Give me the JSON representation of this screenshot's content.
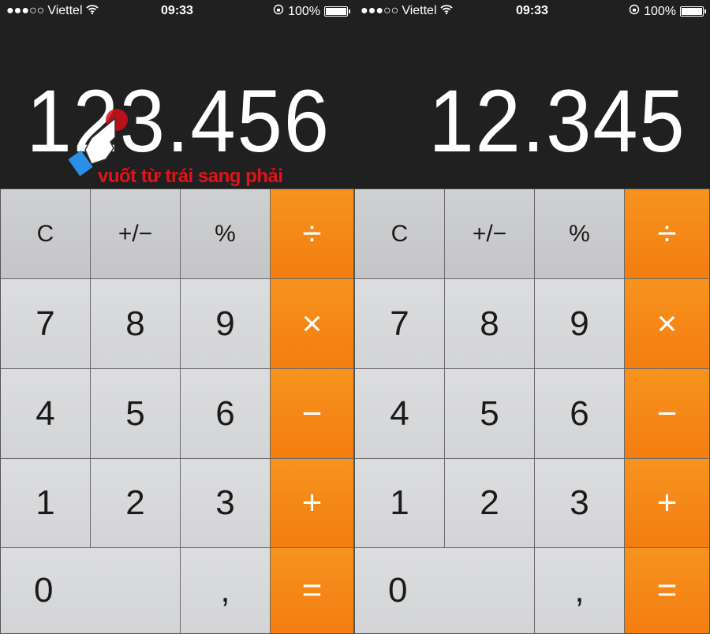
{
  "status_bar": {
    "signal": "●●●○○",
    "carrier": "Viettel",
    "time": "09:33",
    "battery": "100%"
  },
  "panels": [
    {
      "display": "123.456"
    },
    {
      "display": "12.345"
    }
  ],
  "keys": [
    {
      "label": "C",
      "type": "fn",
      "name": "clear"
    },
    {
      "label": "+/−",
      "type": "fn",
      "name": "sign"
    },
    {
      "label": "%",
      "type": "fn",
      "name": "percent"
    },
    {
      "label": "÷",
      "type": "op",
      "name": "divide"
    },
    {
      "label": "7",
      "type": "num",
      "name": "7"
    },
    {
      "label": "8",
      "type": "num",
      "name": "8"
    },
    {
      "label": "9",
      "type": "num",
      "name": "9"
    },
    {
      "label": "×",
      "type": "op",
      "name": "multiply"
    },
    {
      "label": "4",
      "type": "num",
      "name": "4"
    },
    {
      "label": "5",
      "type": "num",
      "name": "5"
    },
    {
      "label": "6",
      "type": "num",
      "name": "6"
    },
    {
      "label": "−",
      "type": "op",
      "name": "subtract"
    },
    {
      "label": "1",
      "type": "num",
      "name": "1"
    },
    {
      "label": "2",
      "type": "num",
      "name": "2"
    },
    {
      "label": "3",
      "type": "num",
      "name": "3"
    },
    {
      "label": "+",
      "type": "op",
      "name": "add"
    },
    {
      "label": "0",
      "type": "zero",
      "name": "0"
    },
    {
      "label": ",",
      "type": "num",
      "name": "decimal"
    },
    {
      "label": "=",
      "type": "op",
      "name": "equals"
    }
  ],
  "annotation": {
    "text": "vuốt từ trái sang phải",
    "color": "#e0141a"
  },
  "colors": {
    "operator": "#f5861a",
    "function_key": "#c9cacc",
    "number_key": "#d8d9db",
    "display_bg": "#202020"
  }
}
